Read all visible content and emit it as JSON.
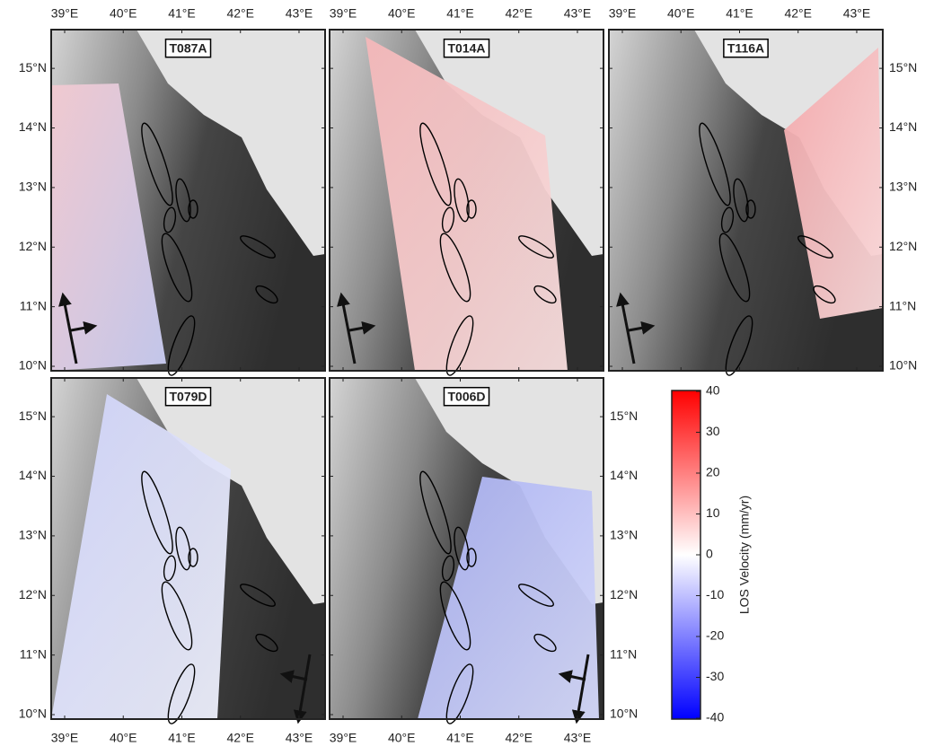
{
  "panels": [
    {
      "label": "T087A"
    },
    {
      "label": "T014A"
    },
    {
      "label": "T116A"
    },
    {
      "label": "T079D"
    },
    {
      "label": "T006D"
    }
  ],
  "map": {
    "xlim": [
      38.77,
      43.445
    ],
    "ylim": [
      9.925,
      15.65
    ],
    "xticks": [
      {
        "value": 39,
        "label": "39°E"
      },
      {
        "value": 40,
        "label": "40°E"
      },
      {
        "value": 41,
        "label": "41°E"
      },
      {
        "value": 42,
        "label": "42°E"
      },
      {
        "value": 43,
        "label": "43°E"
      }
    ],
    "yticks": [
      {
        "value": 10,
        "label": "10°N"
      },
      {
        "value": 11,
        "label": "11°N"
      },
      {
        "value": 12,
        "label": "12°N"
      },
      {
        "value": 13,
        "label": "13°N"
      },
      {
        "value": 14,
        "label": "14°N"
      },
      {
        "value": 15,
        "label": "15°N"
      }
    ]
  },
  "colorbar": {
    "label": "LOS Velocity (mm/yr)",
    "lim": [
      -40,
      40
    ],
    "ticks": [
      -40,
      -30,
      -20,
      -10,
      0,
      10,
      20,
      30,
      40
    ],
    "colormap": [
      "#0000ff",
      "#ffffff",
      "#ff0000"
    ]
  }
}
